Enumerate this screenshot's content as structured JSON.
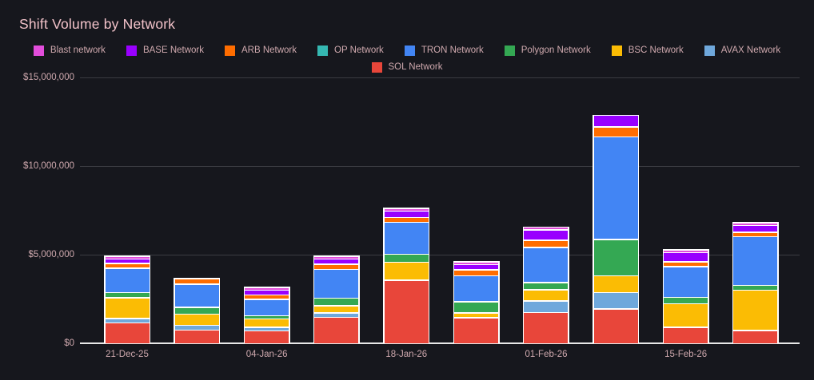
{
  "title": "Shift Volume by Network",
  "colors": {
    "background": "#16171d",
    "title_text": "#f3c3ca",
    "axis_text": "#cfa9ae",
    "gridline": "#3b3c42",
    "baseline": "#e8e8e8",
    "bar_stroke": "#ffffff"
  },
  "legend": {
    "rows": [
      [
        "Blast network",
        "BASE Network",
        "ARB Network",
        "OP Network",
        "TRON Network",
        "Polygon Network",
        "BSC Network",
        "AVAX Network"
      ],
      [
        "SOL Network"
      ]
    ]
  },
  "chart_data": {
    "type": "bar",
    "stacked": true,
    "title": "Shift Volume by Network",
    "xlabel": "",
    "ylabel": "",
    "ylim": [
      0,
      15000000
    ],
    "y_ticks": [
      0,
      5000000,
      10000000,
      15000000
    ],
    "y_tick_labels": [
      "$0",
      "$5,000,000",
      "$10,000,000",
      "$15,000,000"
    ],
    "grid": true,
    "legend_position": "top",
    "categories": [
      "21-Dec-25",
      "",
      "04-Jan-26",
      "",
      "18-Jan-26",
      "",
      "01-Feb-26",
      "",
      "15-Feb-26",
      ""
    ],
    "x_tick_labels": [
      "21-Dec-25",
      "04-Jan-26",
      "18-Jan-26",
      "01-Feb-26",
      "15-Feb-26"
    ],
    "series": [
      {
        "name": "SOL Network",
        "color": "#e8463a",
        "values": [
          1230000,
          760000,
          760000,
          1570000,
          3720000,
          1530000,
          1820000,
          1950000,
          930000,
          700000
        ]
      },
      {
        "name": "AVAX Network",
        "color": "#6fa8dc",
        "values": [
          180000,
          220000,
          180000,
          200000,
          0,
          0,
          630000,
          880000,
          0,
          0
        ]
      },
      {
        "name": "BSC Network",
        "color": "#fbbc04",
        "values": [
          1250000,
          620000,
          490000,
          380000,
          1020000,
          230000,
          620000,
          900000,
          1360000,
          2370000
        ]
      },
      {
        "name": "Polygon Network",
        "color": "#34a853",
        "values": [
          230000,
          350000,
          130000,
          420000,
          400000,
          630000,
          360000,
          2070000,
          330000,
          220000
        ]
      },
      {
        "name": "TRON Network",
        "color": "#4285f4",
        "values": [
          1460000,
          1380000,
          1040000,
          1720000,
          1840000,
          1540000,
          2080000,
          5900000,
          1820000,
          2870000
        ]
      },
      {
        "name": "OP Network",
        "color": "#35b8b2",
        "values": [
          0,
          0,
          0,
          0,
          0,
          0,
          0,
          0,
          0,
          0
        ]
      },
      {
        "name": "ARB Network",
        "color": "#ff6d00",
        "values": [
          240000,
          270000,
          210000,
          260000,
          220000,
          300000,
          350000,
          520000,
          220000,
          200000
        ]
      },
      {
        "name": "BASE Network",
        "color": "#9900ff",
        "values": [
          200000,
          0,
          250000,
          260000,
          300000,
          250000,
          570000,
          600000,
          480000,
          330000
        ]
      },
      {
        "name": "Blast network",
        "color": "#e24ddb",
        "values": [
          80000,
          0,
          50000,
          60000,
          60000,
          60000,
          80000,
          0,
          80000,
          70000
        ]
      }
    ]
  }
}
